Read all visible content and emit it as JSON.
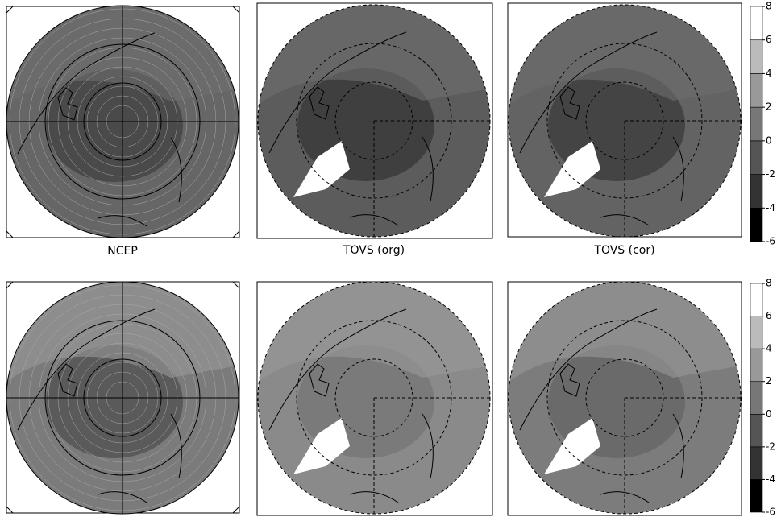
{
  "panels": [
    {
      "label": "NCEP"
    },
    {
      "label": "TOVS (org)"
    },
    {
      "label": "TOVS (cor)"
    }
  ],
  "colorbars": [
    {
      "ticks": [
        -6,
        -4,
        -2,
        0,
        2,
        4,
        6,
        8
      ],
      "colors": [
        "#000000",
        "#333333",
        "#555555",
        "#777777",
        "#999999",
        "#bbbbbb",
        "#ffffff"
      ]
    },
    {
      "ticks": [
        -6,
        -4,
        -2,
        0,
        2,
        4,
        6,
        8
      ],
      "colors": [
        "#000000",
        "#333333",
        "#555555",
        "#777777",
        "#999999",
        "#bbbbbb",
        "#ffffff"
      ]
    }
  ]
}
